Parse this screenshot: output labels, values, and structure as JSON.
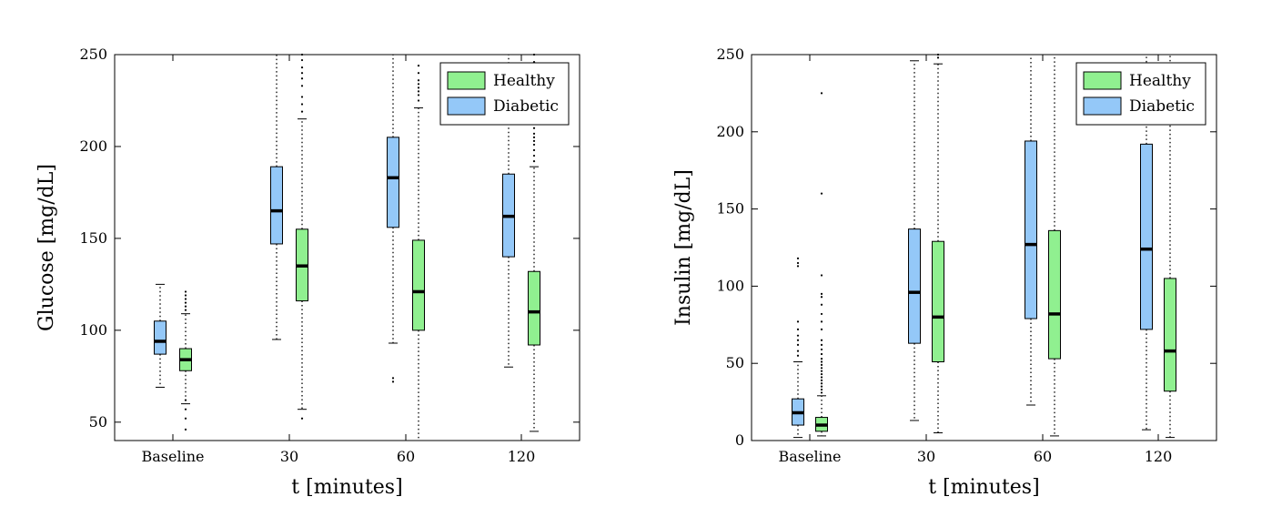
{
  "chart_data": [
    {
      "type": "box",
      "title": "",
      "xlabel": "t [minutes]",
      "ylabel": "Glucose [mg/dL]",
      "ylim": [
        40,
        250
      ],
      "yticks": [
        50,
        100,
        150,
        200,
        250
      ],
      "categories": [
        "Baseline",
        "30",
        "60",
        "120"
      ],
      "grid": false,
      "legend": {
        "position": "top-right",
        "entries": [
          "Healthy",
          "Diabetic"
        ]
      },
      "colors": {
        "Healthy": "#90f090",
        "Diabetic": "#94c8f8"
      },
      "series": [
        {
          "name": "Diabetic",
          "boxes": [
            {
              "whisker_low": 69,
              "q1": 87,
              "median": 94,
              "q3": 105,
              "whisker_high": 125,
              "outliers": []
            },
            {
              "whisker_low": 95,
              "q1": 147,
              "median": 165,
              "q3": 189,
              "whisker_high": 250,
              "outliers": []
            },
            {
              "whisker_low": 93,
              "q1": 156,
              "median": 183,
              "q3": 205,
              "whisker_high": 250,
              "outliers": [
                72,
                74
              ]
            },
            {
              "whisker_low": 80,
              "q1": 140,
              "median": 162,
              "q3": 185,
              "whisker_high": 250,
              "outliers": []
            }
          ]
        },
        {
          "name": "Healthy",
          "boxes": [
            {
              "whisker_low": 60,
              "q1": 78,
              "median": 84,
              "q3": 90,
              "whisker_high": 109,
              "outliers": [
                46,
                52,
                57,
                62,
                111,
                113,
                115,
                117,
                119,
                121
              ]
            },
            {
              "whisker_low": 57,
              "q1": 116,
              "median": 135,
              "q3": 155,
              "whisker_high": 215,
              "outliers": [
                52,
                219,
                223,
                227,
                233,
                237,
                240,
                243,
                247,
                250
              ]
            },
            {
              "whisker_low": 40,
              "q1": 100,
              "median": 121,
              "q3": 149,
              "whisker_high": 221,
              "outliers": [
                225,
                228,
                230,
                232,
                234,
                236,
                240,
                244
              ]
            },
            {
              "whisker_low": 45,
              "q1": 92,
              "median": 110,
              "q3": 132,
              "whisker_high": 189,
              "outliers": [
                192,
                195,
                198,
                201,
                203,
                205,
                207,
                210,
                214,
                246,
                250
              ]
            }
          ]
        }
      ]
    },
    {
      "type": "box",
      "title": "",
      "xlabel": "t [minutes]",
      "ylabel": "Insulin [mg/dL]",
      "ylim": [
        0,
        250
      ],
      "yticks": [
        0,
        50,
        100,
        150,
        200,
        250
      ],
      "categories": [
        "Baseline",
        "30",
        "60",
        "120"
      ],
      "grid": false,
      "legend": {
        "position": "top-right",
        "entries": [
          "Healthy",
          "Diabetic"
        ]
      },
      "colors": {
        "Healthy": "#90f090",
        "Diabetic": "#94c8f8"
      },
      "series": [
        {
          "name": "Diabetic",
          "boxes": [
            {
              "whisker_low": 2,
              "q1": 10,
              "median": 18,
              "q3": 27,
              "whisker_high": 51,
              "outliers": [
                55,
                58,
                62,
                65,
                68,
                72,
                77,
                113,
                115,
                118
              ]
            },
            {
              "whisker_low": 13,
              "q1": 63,
              "median": 96,
              "q3": 137,
              "whisker_high": 246,
              "outliers": []
            },
            {
              "whisker_low": 23,
              "q1": 79,
              "median": 127,
              "q3": 194,
              "whisker_high": 250,
              "outliers": []
            },
            {
              "whisker_low": 7,
              "q1": 72,
              "median": 124,
              "q3": 192,
              "whisker_high": 250,
              "outliers": []
            }
          ]
        },
        {
          "name": "Healthy",
          "boxes": [
            {
              "whisker_low": 3,
              "q1": 6,
              "median": 10,
              "q3": 15,
              "whisker_high": 29,
              "outliers": [
                31,
                33,
                35,
                37,
                39,
                41,
                43,
                45,
                47,
                49,
                51,
                53,
                56,
                59,
                62,
                65,
                72,
                77,
                82,
                88,
                93,
                95,
                107,
                160,
                225
              ]
            },
            {
              "whisker_low": 5,
              "q1": 51,
              "median": 80,
              "q3": 129,
              "whisker_high": 244,
              "outliers": [
                248,
                250
              ]
            },
            {
              "whisker_low": 3,
              "q1": 53,
              "median": 82,
              "q3": 136,
              "whisker_high": 250,
              "outliers": []
            },
            {
              "whisker_low": 2,
              "q1": 32,
              "median": 58,
              "q3": 105,
              "whisker_high": 250,
              "outliers": []
            }
          ]
        }
      ]
    }
  ]
}
